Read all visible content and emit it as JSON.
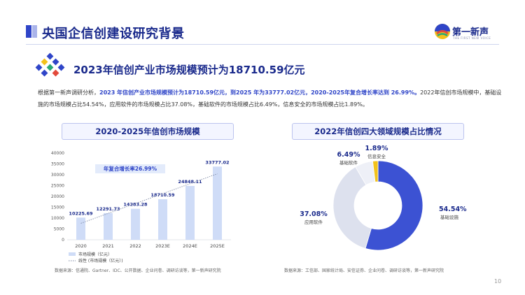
{
  "page": {
    "title": "央国企信创建设研究背景",
    "subtitle": "2023年信创产业市场规模预计为18710.59亿元",
    "page_number": "10",
    "colors": {
      "primary": "#2f45c8",
      "light_bar": "#cfdcf7",
      "pie_gray": "#dde1ee",
      "pie_yellow": "#f3c21b"
    }
  },
  "logo": {
    "name": "第一新声",
    "tagline": "THE FIRST NEW VOICE"
  },
  "paragraph": {
    "p1": "根据第一新声调研分析，",
    "p2": "2023 年信创产业市场规模预计为18710.59亿元，到2025 年为33777.02亿元，2020-2025年复合增长率达到 26.99%。",
    "p3": "2022年信创市场规模中，基础设施的市场规模占比54.54%，应用软件的市场规模占比37.08%，基础软件的市场规模占比6.49%，信息安全的市场规模占比1.89%。"
  },
  "left_chart_title": "2020-2025年信创市场规模",
  "right_chart_title": "2022年信创四大领域规模占比情况",
  "left_source": "数据来源：信通院、Gartner、IDC、公开数据、企业问卷、调研访谈等，第一新声研究院",
  "right_source": "数据来源：工信部、国家统计局、安信证券、企业问卷、调研访谈等，第一新声研究院",
  "chart_data": [
    {
      "type": "bar",
      "categories": [
        "2020",
        "2021",
        "2022",
        "2023E",
        "2024E",
        "2025E"
      ],
      "values": [
        10225.69,
        12291.73,
        14283.28,
        18710.59,
        24848.11,
        33777.02
      ],
      "value_labels": [
        "10225.69",
        "12291.73",
        "14283.28",
        "18710.59",
        "24848.11",
        "33777.02"
      ],
      "yticks": [
        0,
        5000,
        10000,
        15000,
        20000,
        25000,
        30000,
        35000,
        40000
      ],
      "ylim": [
        0,
        40000
      ],
      "legend": [
        "市场规模（亿元）",
        "线性 (市场规模（亿元）)"
      ],
      "annotation": "年复合增长率26.99%",
      "trendline": true
    },
    {
      "type": "pie",
      "labels": [
        "基础设施",
        "应用软件",
        "基础软件",
        "信息安全"
      ],
      "values": [
        54.54,
        37.08,
        6.49,
        1.89
      ],
      "value_labels": [
        "54.54%",
        "37.08%",
        "6.49%",
        "1.89%"
      ],
      "colors": [
        "#3c52d3",
        "#dde1ee",
        "#eef0f7",
        "#f3c21b"
      ]
    }
  ]
}
